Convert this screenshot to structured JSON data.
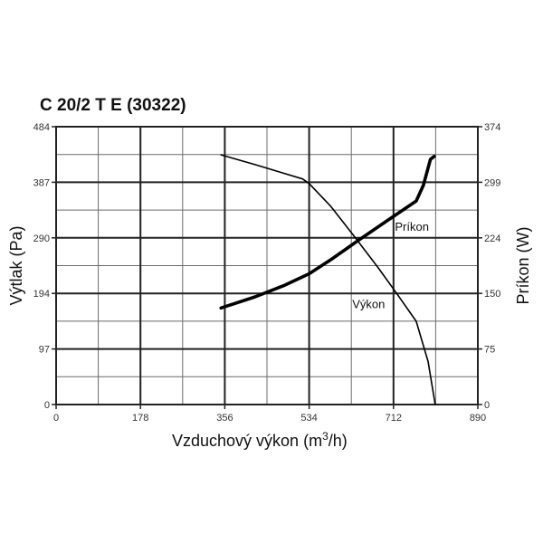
{
  "chart_data": {
    "type": "line",
    "title": "C 20/2 T E (30322)",
    "xlabel_main": "Vzduchový výkon (m",
    "xlabel_sup": "3",
    "xlabel_end": "/h)",
    "ylabel_left": "Výtlak (Pa)",
    "ylabel_right": "Príkon (W)",
    "xlim": [
      0,
      890
    ],
    "ylim_left": [
      0,
      484
    ],
    "ylim_right": [
      0,
      374
    ],
    "x_ticks": [
      "0",
      "178",
      "356",
      "534",
      "712",
      "890"
    ],
    "y_ticks_left": [
      "0",
      "97",
      "194",
      "290",
      "387",
      "484"
    ],
    "y_ticks_right": [
      "0",
      "75",
      "150",
      "224",
      "299",
      "374"
    ],
    "grid": true,
    "series": [
      {
        "name": "Výkon",
        "axis": "left",
        "stroke": "thin",
        "x": [
          348,
          420,
          480,
          520,
          534,
          580,
          630,
          680,
          720,
          760,
          785,
          800
        ],
        "y": [
          435,
          418,
          403,
          393,
          385,
          345,
          292,
          238,
          192,
          145,
          75,
          0
        ]
      },
      {
        "name": "Príkon",
        "axis": "right",
        "stroke": "thick",
        "x": [
          348,
          420,
          480,
          534,
          580,
          640,
          700,
          760,
          775,
          790,
          798
        ],
        "y": [
          130,
          145,
          160,
          176,
          195,
          222,
          248,
          274,
          295,
          330,
          334
        ]
      }
    ],
    "annotations": [
      {
        "text": "Príkon",
        "x": 715,
        "y_right": 240
      },
      {
        "text": "Výkon",
        "x": 625,
        "y_left": 176
      }
    ]
  },
  "colors": {
    "frame": "#222222",
    "major_grid": "#222222",
    "minor_grid": "#6b6b6b",
    "curve": "#000000"
  }
}
